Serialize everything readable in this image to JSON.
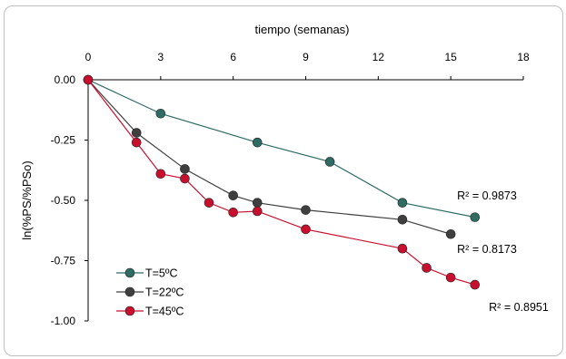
{
  "chart_data": {
    "type": "line",
    "xlabel": "tiempo (semanas)",
    "ylabel": "ln(%PS/%PSo)",
    "x_ticks": [
      "0",
      "3",
      "6",
      "9",
      "12",
      "15",
      "18"
    ],
    "y_ticks": [
      "0.00",
      "-0.25",
      "-0.50",
      "-0.75",
      "-1.00"
    ],
    "xlim": [
      0,
      18
    ],
    "ylim": [
      -1.0,
      0.0
    ],
    "x_axis_position": "top",
    "grid": false,
    "legend_position": "bottom-left",
    "series": [
      {
        "name": "T=5ºC",
        "color": "#2e6b63",
        "x": [
          0,
          3,
          7,
          10,
          13,
          16
        ],
        "y": [
          0.0,
          -0.14,
          -0.26,
          -0.34,
          -0.51,
          -0.57
        ],
        "r2": "R² = 0.9873"
      },
      {
        "name": "T=22ºC",
        "color": "#3f3f3f",
        "x": [
          0,
          2,
          4,
          6,
          7,
          9,
          13,
          15
        ],
        "y": [
          0.0,
          -0.22,
          -0.37,
          -0.48,
          -0.51,
          -0.54,
          -0.58,
          -0.64
        ],
        "r2": "R² = 0.8173"
      },
      {
        "name": "T=45ºC",
        "color": "#c8102e",
        "x": [
          0,
          2,
          3,
          4,
          5,
          6,
          7,
          9,
          13,
          14,
          15,
          16
        ],
        "y": [
          0.0,
          -0.26,
          -0.39,
          -0.41,
          -0.51,
          -0.55,
          -0.545,
          -0.62,
          -0.7,
          -0.78,
          -0.82,
          -0.85
        ],
        "r2": "R² = 0.8951"
      }
    ]
  }
}
